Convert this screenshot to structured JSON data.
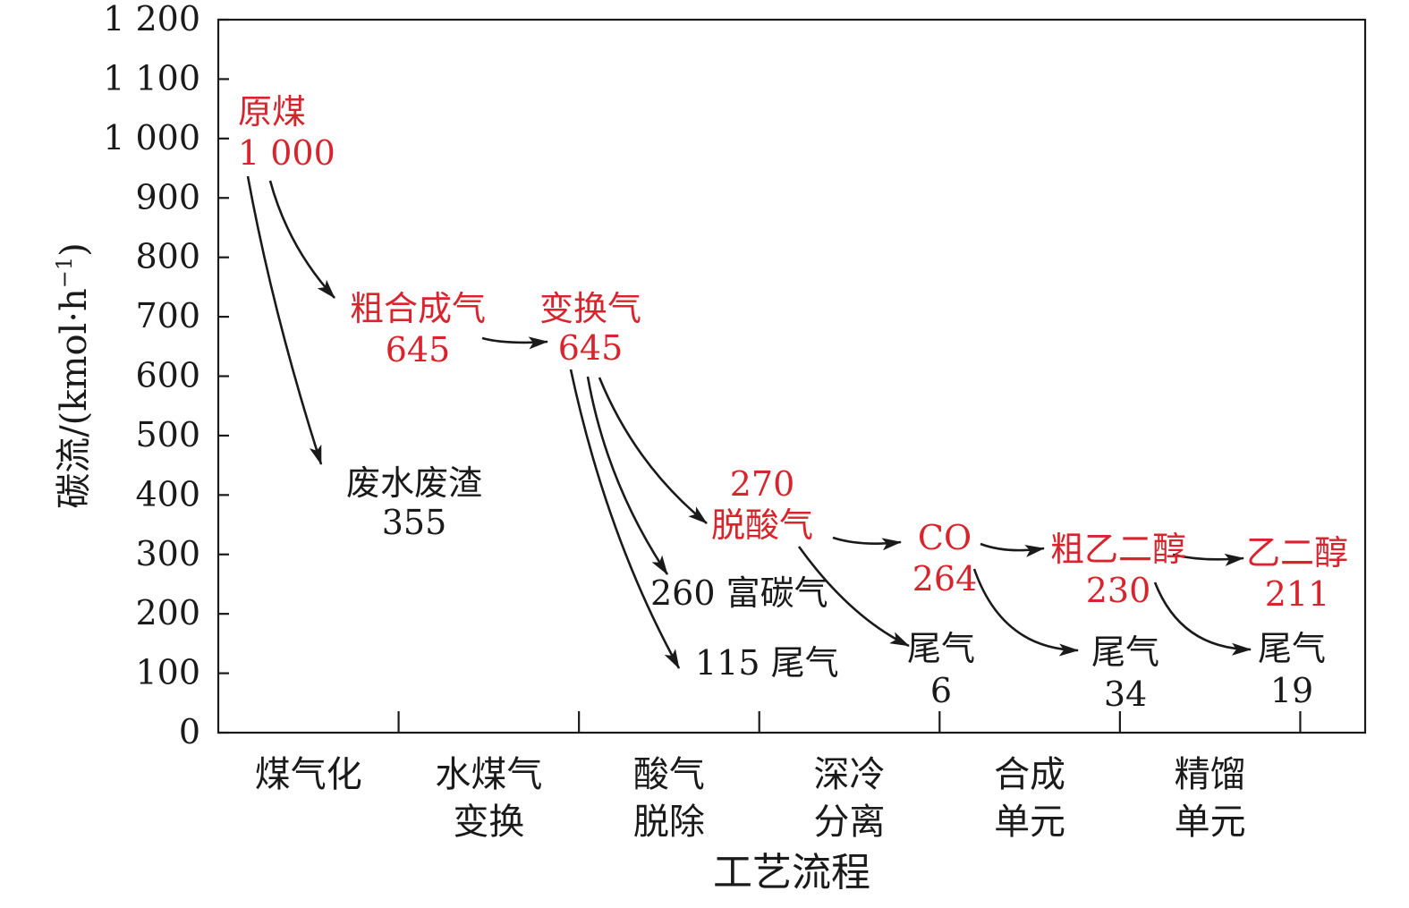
{
  "chart_data": {
    "type": "flow",
    "title": "",
    "xlabel": "工艺流程",
    "ylabel": "碳流/(kmol·h",
    "ylabel_sup": "−1",
    "ylabel_close": ")",
    "ylim": [
      0,
      1200
    ],
    "yticks": [
      0,
      100,
      200,
      300,
      400,
      500,
      600,
      700,
      800,
      900,
      1000,
      1100,
      1200
    ],
    "ytick_labels": [
      "0",
      "100",
      "200",
      "300",
      "400",
      "500",
      "600",
      "700",
      "800",
      "900",
      "1 000",
      "1 100",
      "1 200"
    ],
    "categories": [
      [
        "煤气化"
      ],
      [
        "水煤气",
        "变换"
      ],
      [
        "酸气",
        "脱除"
      ],
      [
        "深冷",
        "分离"
      ],
      [
        "合成",
        "单元"
      ],
      [
        "精馏",
        "单元"
      ]
    ],
    "grid": false,
    "colors": {
      "main_flow": "#d8242d",
      "side_flow": "#1a1a1a",
      "axis": "#1a1a1a"
    },
    "nodes": [
      {
        "id": "raw-coal",
        "lines": [
          "原煤",
          "1 000"
        ],
        "value": 1000,
        "color": "main_flow"
      },
      {
        "id": "crude-syngas",
        "lines": [
          "粗合成气",
          "645"
        ],
        "value": 645,
        "color": "main_flow"
      },
      {
        "id": "wastewater-residue",
        "lines": [
          "废水废渣",
          "355"
        ],
        "value": 355,
        "color": "side_flow"
      },
      {
        "id": "shifted-gas",
        "lines": [
          "变换气",
          "645"
        ],
        "value": 645,
        "color": "main_flow"
      },
      {
        "id": "acid-free-gas",
        "lines": [
          "270",
          "脱酸气"
        ],
        "value": 270,
        "color": "main_flow"
      },
      {
        "id": "carbon-rich-gas",
        "lines": [
          "260 富碳气"
        ],
        "value": 260,
        "color": "side_flow"
      },
      {
        "id": "tail-gas-acid",
        "lines": [
          "115 尾气"
        ],
        "value": 115,
        "color": "side_flow"
      },
      {
        "id": "co",
        "lines": [
          "CO",
          "264"
        ],
        "value": 264,
        "color": "main_flow"
      },
      {
        "id": "tail-gas-cryo",
        "lines": [
          "尾气",
          "6"
        ],
        "value": 6,
        "color": "side_flow"
      },
      {
        "id": "crude-eg",
        "lines": [
          "粗乙二醇",
          "230"
        ],
        "value": 230,
        "color": "main_flow"
      },
      {
        "id": "tail-gas-synth",
        "lines": [
          "尾气",
          "34"
        ],
        "value": 34,
        "color": "side_flow"
      },
      {
        "id": "ethylene-glycol",
        "lines": [
          "乙二醇",
          "211"
        ],
        "value": 211,
        "color": "main_flow"
      },
      {
        "id": "tail-gas-distill",
        "lines": [
          "尾气",
          "19"
        ],
        "value": 19,
        "color": "side_flow"
      }
    ],
    "flows": [
      {
        "from": "raw-coal",
        "to": "crude-syngas"
      },
      {
        "from": "raw-coal",
        "to": "wastewater-residue"
      },
      {
        "from": "crude-syngas",
        "to": "shifted-gas"
      },
      {
        "from": "shifted-gas",
        "to": "acid-free-gas"
      },
      {
        "from": "shifted-gas",
        "to": "carbon-rich-gas"
      },
      {
        "from": "shifted-gas",
        "to": "tail-gas-acid"
      },
      {
        "from": "acid-free-gas",
        "to": "co"
      },
      {
        "from": "acid-free-gas",
        "to": "tail-gas-cryo"
      },
      {
        "from": "co",
        "to": "crude-eg"
      },
      {
        "from": "co",
        "to": "tail-gas-synth"
      },
      {
        "from": "crude-eg",
        "to": "ethylene-glycol"
      },
      {
        "from": "crude-eg",
        "to": "tail-gas-distill"
      }
    ]
  }
}
